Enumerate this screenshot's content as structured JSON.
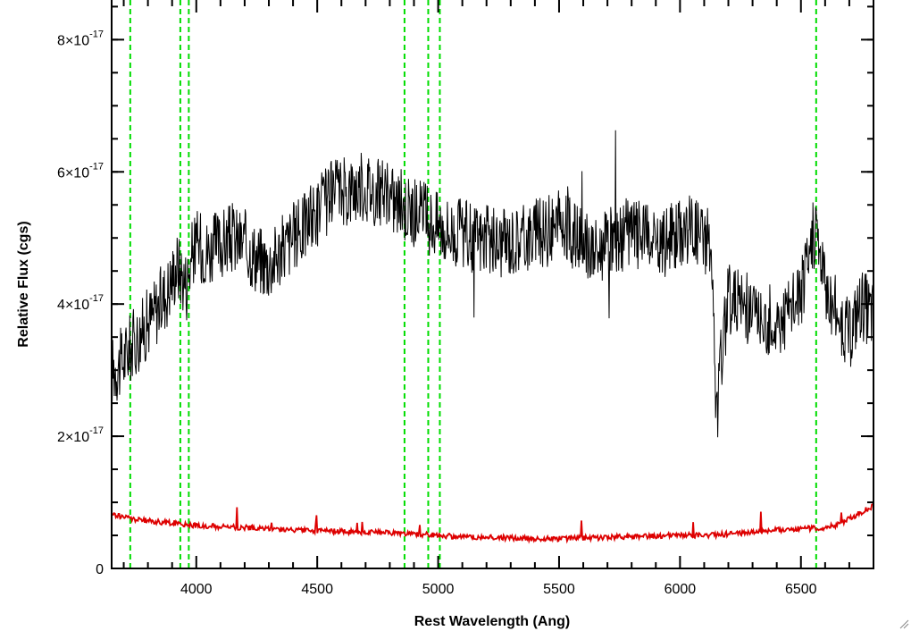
{
  "chart_data": {
    "type": "line",
    "title": "",
    "xlabel": "Rest Wavelength (Ang)",
    "ylabel": "Relative Flux (cgs)",
    "xlim": [
      3650,
      6800
    ],
    "ylim": [
      0,
      8.6e-17
    ],
    "x_ticks": [
      4000,
      4500,
      5000,
      5500,
      6000,
      6500
    ],
    "x_tick_labels": [
      "4000",
      "4500",
      "5000",
      "5500",
      "6000",
      "6500"
    ],
    "y_ticks": [
      0,
      2e-17,
      4e-17,
      6e-17,
      8e-17
    ],
    "y_tick_labels": [
      {
        "mantissa": "0",
        "exponent": ""
      },
      {
        "mantissa": "2×10",
        "exponent": "-17"
      },
      {
        "mantissa": "4×10",
        "exponent": "-17"
      },
      {
        "mantissa": "6×10",
        "exponent": "-17"
      },
      {
        "mantissa": "8×10",
        "exponent": "-17"
      }
    ],
    "grid": false,
    "legend": "none",
    "vertical_lines": {
      "color": "#00dd00",
      "style": "dashed",
      "x": [
        3727,
        3934,
        3969,
        4861,
        4959,
        5007,
        6563
      ]
    },
    "series": [
      {
        "color": "#000000",
        "role": "spectrum",
        "x": [
          3650,
          3690,
          3720,
          3740,
          3780,
          3830,
          3880,
          3920,
          3960,
          3985,
          4000,
          4050,
          4100,
          4150,
          4200,
          4250,
          4300,
          4350,
          4400,
          4450,
          4500,
          4550,
          4600,
          4650,
          4700,
          4750,
          4800,
          4850,
          4900,
          4950,
          5000,
          5050,
          5100,
          5150,
          5200,
          5250,
          5300,
          5350,
          5400,
          5450,
          5500,
          5550,
          5600,
          5650,
          5700,
          5750,
          5800,
          5850,
          5900,
          5950,
          6000,
          6050,
          6100,
          6130,
          6150,
          6170,
          6200,
          6250,
          6300,
          6350,
          6400,
          6450,
          6500,
          6530,
          6560,
          6600,
          6650,
          6700,
          6750,
          6800
        ],
        "y": [
          3e-17,
          3.1e-17,
          3.3e-17,
          3.4e-17,
          3.6e-17,
          3.9e-17,
          4.2e-17,
          4.6e-17,
          4.3e-17,
          4.8e-17,
          4.9e-17,
          4.8e-17,
          4.9e-17,
          5e-17,
          4.9e-17,
          4.7e-17,
          4.6e-17,
          4.8e-17,
          5e-17,
          5.2e-17,
          5.4e-17,
          5.6e-17,
          5.7e-17,
          5.75e-17,
          5.8e-17,
          5.7e-17,
          5.6e-17,
          5.5e-17,
          5.4e-17,
          5.3e-17,
          5.2e-17,
          5.1e-17,
          5.05e-17,
          5e-17,
          4.95e-17,
          4.9e-17,
          4.95e-17,
          5e-17,
          5.05e-17,
          5.1e-17,
          5.2e-17,
          5.1e-17,
          4.9e-17,
          4.8e-17,
          4.9e-17,
          5e-17,
          5.1e-17,
          5.05e-17,
          4.8e-17,
          5e-17,
          5.1e-17,
          5.2e-17,
          5e-17,
          4.8e-17,
          2.2e-17,
          3.2e-17,
          4.1e-17,
          4e-17,
          3.9e-17,
          3.8e-17,
          3.7e-17,
          3.9e-17,
          4.2e-17,
          4.6e-17,
          5.2e-17,
          4.3e-17,
          3.9e-17,
          3.5e-17,
          4e-17,
          3.8e-17
        ]
      },
      {
        "color": "#dd0000",
        "role": "error",
        "x": [
          3650,
          3700,
          3750,
          3800,
          3850,
          3900,
          3950,
          4000,
          4100,
          4200,
          4300,
          4400,
          4500,
          4600,
          4700,
          4800,
          4900,
          5000,
          5100,
          5200,
          5300,
          5400,
          5500,
          5600,
          5700,
          5800,
          5900,
          6000,
          6100,
          6200,
          6300,
          6400,
          6500,
          6600,
          6650,
          6700,
          6750,
          6800
        ],
        "y": [
          8.2e-18,
          7.8e-18,
          7.4e-18,
          7.2e-18,
          7e-18,
          6.9e-18,
          6.7e-18,
          6.5e-18,
          6.3e-18,
          6.2e-18,
          6e-18,
          5.8e-18,
          5.7e-18,
          5.6e-18,
          5.5e-18,
          5.4e-18,
          5.2e-18,
          5e-18,
          4.8e-18,
          4.7e-18,
          4.6e-18,
          4.5e-18,
          4.5e-18,
          4.6e-18,
          4.7e-18,
          4.8e-18,
          4.9e-18,
          5e-18,
          5e-18,
          5.2e-18,
          5.5e-18,
          5.8e-18,
          6e-18,
          6.2e-18,
          6.6e-18,
          7.5e-18,
          8.5e-18,
          9.5e-18
        ]
      }
    ]
  }
}
